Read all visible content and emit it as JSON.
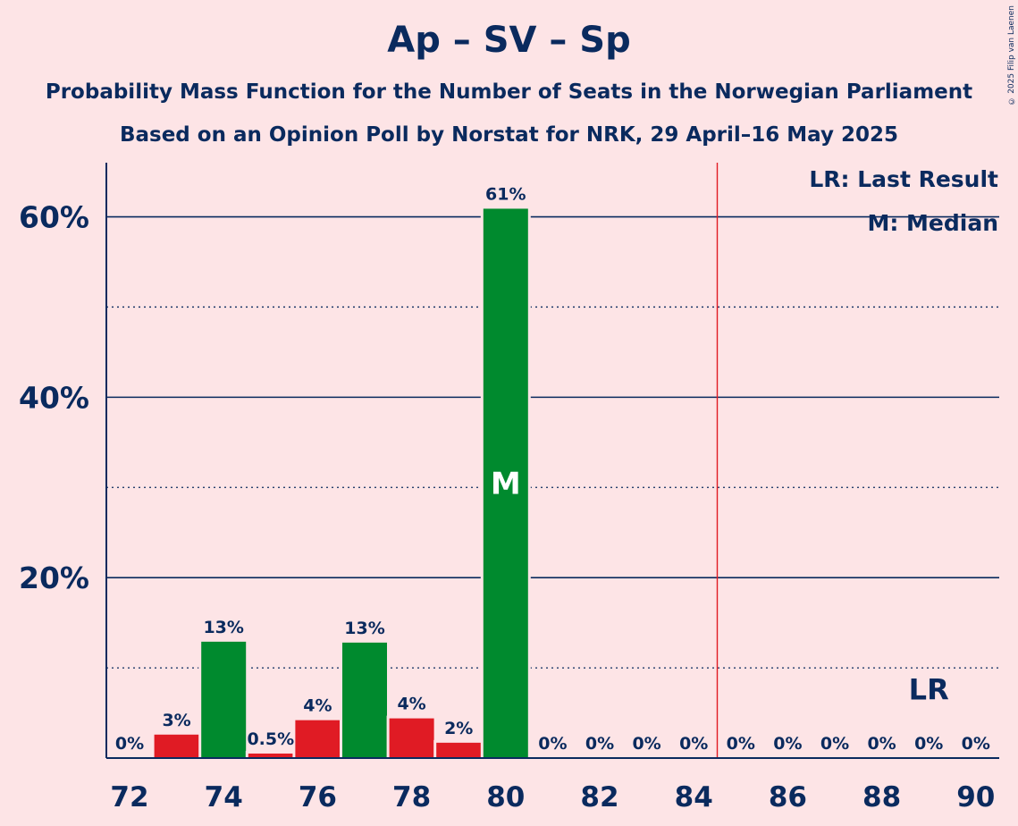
{
  "title": "Ap – SV – Sp",
  "subtitle1": "Probability Mass Function for the Number of Seats in the Norwegian Parliament",
  "subtitle2": "Based on an Opinion Poll by Norstat for NRK, 29 April–16 May 2025",
  "copyright": "© 2025 Filip van Laenen",
  "legend": {
    "last_result": "LR: Last Result",
    "median": "M: Median"
  },
  "colors": {
    "background": "#fde4e6",
    "text": "#0a2a5e",
    "green": "#008a2e",
    "red": "#e01b24",
    "majority_line": "#e01b24"
  },
  "chart_data": {
    "type": "bar",
    "x": [
      72,
      73,
      74,
      75,
      76,
      77,
      78,
      79,
      80,
      81,
      82,
      83,
      84,
      85,
      86,
      87,
      88,
      89,
      90
    ],
    "values": [
      0,
      2.6,
      12.9,
      0.5,
      4.2,
      12.8,
      4.4,
      1.7,
      60.9,
      0,
      0,
      0,
      0,
      0,
      0,
      0,
      0,
      0,
      0
    ],
    "labels": [
      "0%",
      "3%",
      "13%",
      "0.5%",
      "4%",
      "13%",
      "4%",
      "2%",
      "61%",
      "0%",
      "0%",
      "0%",
      "0%",
      "0%",
      "0%",
      "0%",
      "0%",
      "0%",
      "0%"
    ],
    "bar_colors": [
      "green",
      "red",
      "green",
      "red",
      "red",
      "green",
      "red",
      "red",
      "green",
      "green",
      "red",
      "green",
      "red",
      "green",
      "red",
      "green",
      "red",
      "green",
      "red"
    ],
    "x_tick_labels": [
      "72",
      "74",
      "76",
      "78",
      "80",
      "82",
      "84",
      "86",
      "88",
      "90"
    ],
    "y_tick_labels": [
      "20%",
      "40%",
      "60%"
    ],
    "ylim": [
      0,
      66
    ],
    "median_seat": 80,
    "median_marker": "M",
    "last_result_seat": 89,
    "last_result_marker": "LR",
    "majority_threshold": 84.5,
    "grid": true,
    "legend_position": "top-right"
  }
}
